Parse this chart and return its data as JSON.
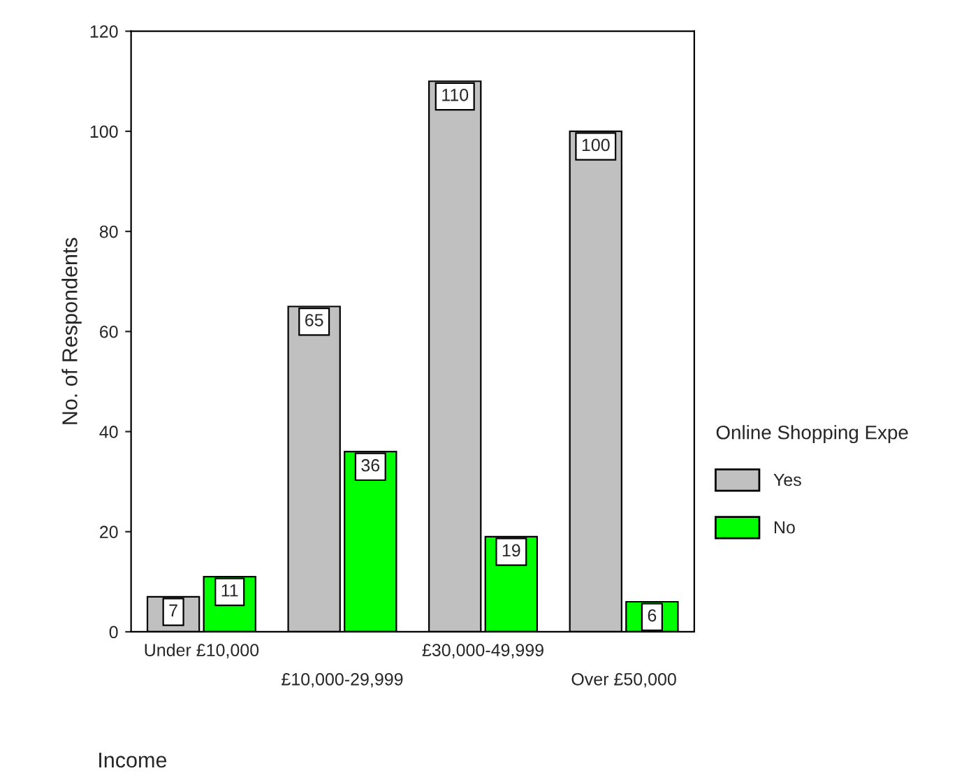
{
  "chart_data": {
    "type": "bar",
    "categories": [
      "Under £10,000",
      "£10,000-29,999",
      "£30,000-49,999",
      "Over £50,000"
    ],
    "series": [
      {
        "name": "Yes",
        "color": "#c0c0c0",
        "values": [
          7,
          65,
          110,
          100
        ]
      },
      {
        "name": "No",
        "color": "#00ff00",
        "values": [
          11,
          36,
          19,
          6
        ]
      }
    ],
    "ylabel": "No. of Respondents",
    "xlabel": "Income",
    "legend_title": "Online Shopping Expe",
    "legend": "right",
    "ylim": [
      0,
      120
    ],
    "yticks": [
      0,
      20,
      40,
      60,
      80,
      100,
      120
    ],
    "data_labels": true,
    "grid": false
  }
}
